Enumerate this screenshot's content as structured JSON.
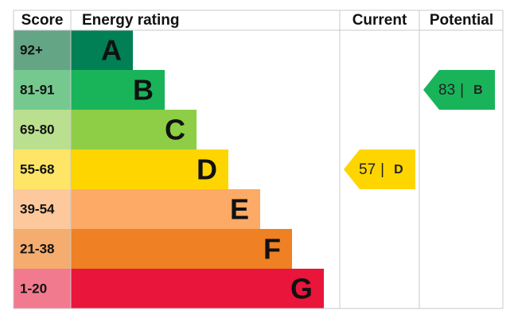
{
  "header": {
    "score": "Score",
    "rating": "Energy rating",
    "current": "Current",
    "potential": "Potential"
  },
  "bands": [
    {
      "score": "92+",
      "letter": "A",
      "color": "#008054",
      "light": "#64a586"
    },
    {
      "score": "81-91",
      "letter": "B",
      "color": "#19b459",
      "light": "#75c98f"
    },
    {
      "score": "69-80",
      "letter": "C",
      "color": "#8dce46",
      "light": "#bae08f"
    },
    {
      "score": "55-68",
      "letter": "D",
      "color": "#ffd500",
      "light": "#ffe566"
    },
    {
      "score": "39-54",
      "letter": "E",
      "color": "#fcaa65",
      "light": "#fdc99c"
    },
    {
      "score": "21-38",
      "letter": "F",
      "color": "#ef8023",
      "light": "#f4ac6f"
    },
    {
      "score": "1-20",
      "letter": "G",
      "color": "#e9153b",
      "light": "#f27a8e"
    }
  ],
  "current": {
    "score": 57,
    "separator": "|",
    "rating": "D"
  },
  "potential": {
    "score": 83,
    "separator": "|",
    "rating": "B"
  }
}
